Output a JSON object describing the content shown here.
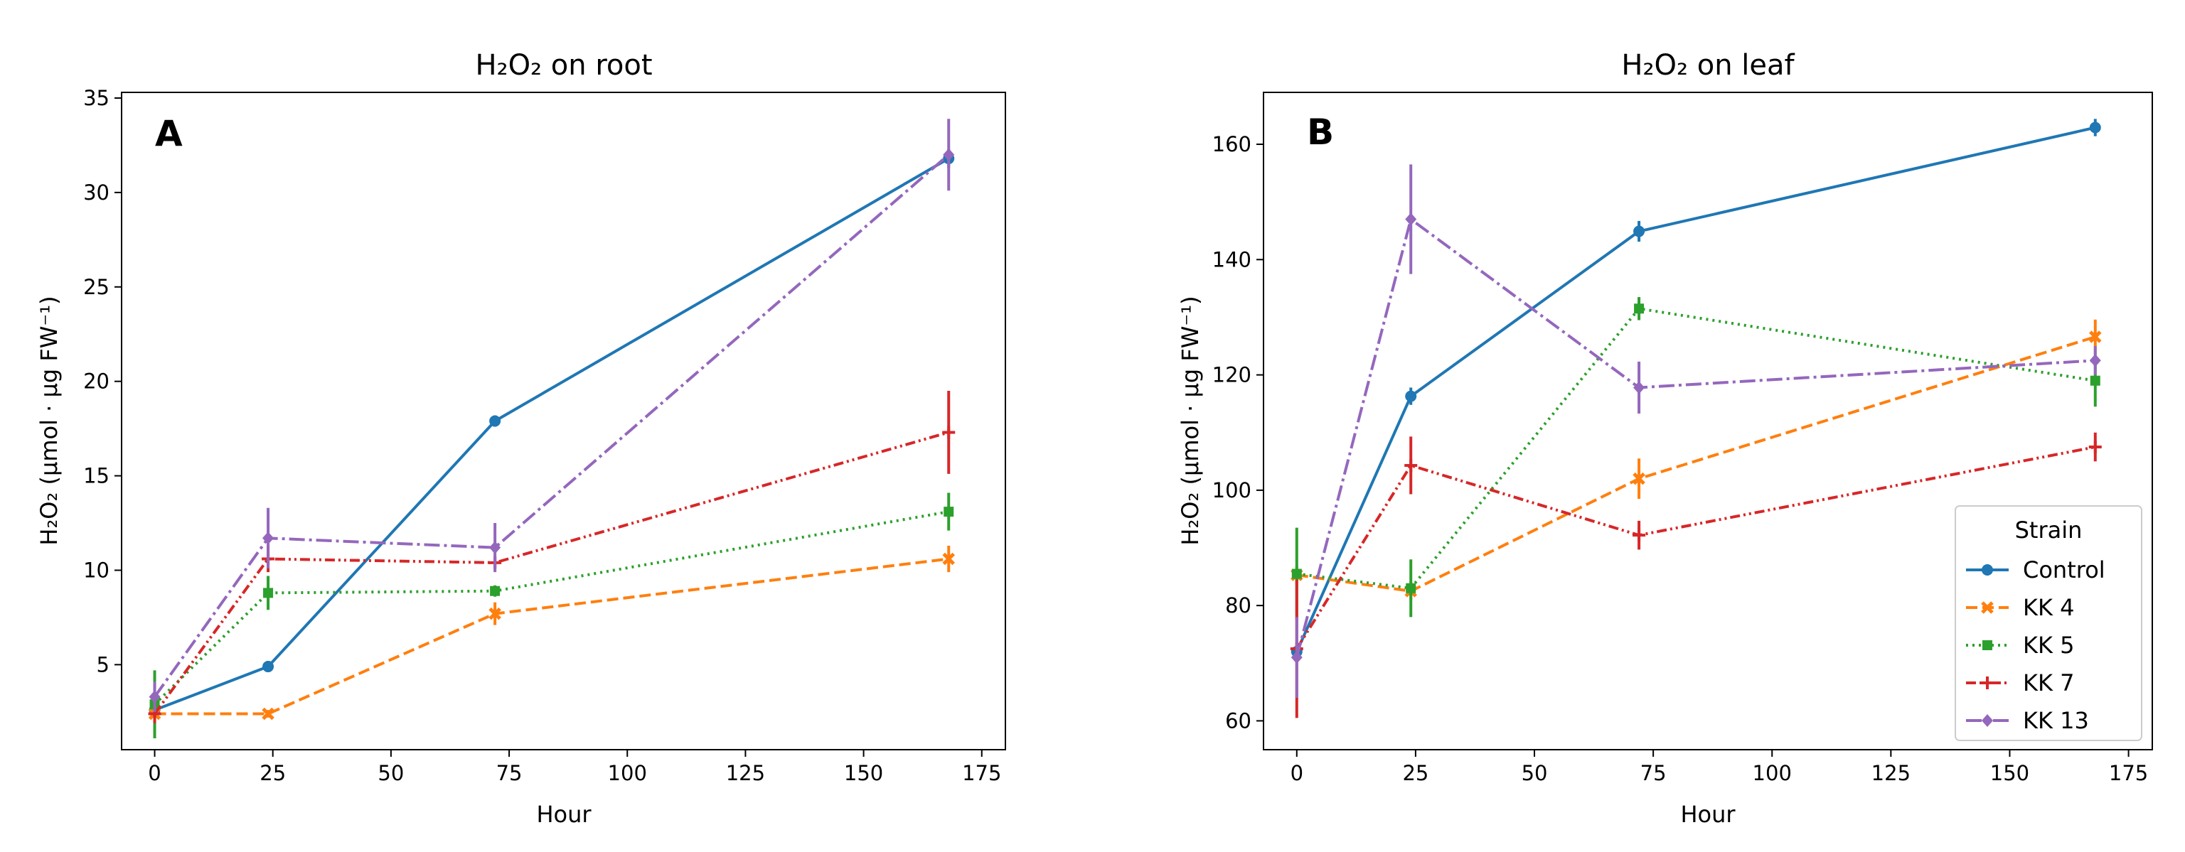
{
  "chart_data": [
    {
      "type": "line",
      "panel_letter": "A",
      "title": "H₂O₂ on root",
      "xlabel": "Hour",
      "ylabel": "H₂O₂ (µmol · µg FW⁻¹)",
      "xlim": [
        -7,
        180
      ],
      "ylim": [
        0.5,
        35.3
      ],
      "xticks": [
        0,
        25,
        50,
        75,
        100,
        125,
        150,
        175
      ],
      "xtick_labels": [
        "0",
        "25",
        "50",
        "75",
        "100",
        "125",
        "150",
        "175"
      ],
      "yticks": [
        5,
        10,
        15,
        20,
        25,
        30,
        35
      ],
      "ytick_labels": [
        "5",
        "10",
        "15",
        "20",
        "25",
        "30",
        "35"
      ],
      "x": [
        0,
        24,
        72,
        168
      ],
      "series": [
        {
          "name": "Control",
          "values": [
            2.6,
            4.9,
            17.9,
            31.8
          ],
          "err": [
            0.3,
            0.3,
            0.3,
            0.5
          ]
        },
        {
          "name": "KK 4",
          "values": [
            2.4,
            2.4,
            7.7,
            10.6
          ],
          "err": [
            0.2,
            0.2,
            0.6,
            0.7
          ]
        },
        {
          "name": "KK 5",
          "values": [
            2.9,
            8.8,
            8.9,
            13.1
          ],
          "err": [
            1.8,
            0.9,
            0.3,
            1.0
          ]
        },
        {
          "name": "KK 7",
          "values": [
            2.4,
            10.6,
            10.4,
            17.3
          ],
          "err": [
            0.5,
            0.7,
            0.3,
            2.2
          ]
        },
        {
          "name": "KK 13",
          "values": [
            3.3,
            11.7,
            11.2,
            32.0
          ],
          "err": [
            0.8,
            1.6,
            1.3,
            1.9
          ]
        }
      ]
    },
    {
      "type": "line",
      "panel_letter": "B",
      "title": "H₂O₂ on leaf",
      "xlabel": "Hour",
      "ylabel": "H₂O₂ (µmol · µg FW⁻¹)",
      "xlim": [
        -7,
        180
      ],
      "ylim": [
        55,
        169
      ],
      "xticks": [
        0,
        25,
        50,
        75,
        100,
        125,
        150,
        175
      ],
      "xtick_labels": [
        "0",
        "25",
        "50",
        "75",
        "100",
        "125",
        "150",
        "175"
      ],
      "yticks": [
        60,
        80,
        100,
        120,
        140,
        160
      ],
      "ytick_labels": [
        "60",
        "80",
        "100",
        "120",
        "140",
        "160"
      ],
      "x": [
        0,
        24,
        72,
        168
      ],
      "series": [
        {
          "name": "Control",
          "values": [
            72.0,
            116.3,
            144.9,
            162.9
          ],
          "err": [
            1.5,
            1.5,
            1.8,
            1.5
          ]
        },
        {
          "name": "KK 4",
          "values": [
            85.3,
            82.5,
            102.0,
            126.6
          ],
          "err": [
            1.5,
            1.5,
            3.5,
            3.0
          ]
        },
        {
          "name": "KK 5",
          "values": [
            85.5,
            83.0,
            131.5,
            119.0
          ],
          "err": [
            8.0,
            5.0,
            2.0,
            4.5
          ]
        },
        {
          "name": "KK 7",
          "values": [
            72.5,
            104.3,
            92.2,
            107.5
          ],
          "err": [
            12.0,
            5.0,
            2.5,
            2.5
          ]
        },
        {
          "name": "KK 13",
          "values": [
            71.0,
            147.0,
            117.8,
            122.5
          ],
          "err": [
            7.0,
            9.5,
            4.5,
            2.5
          ]
        }
      ]
    }
  ],
  "legend": {
    "title": "Strain",
    "location": "lower-right of panel B",
    "entries": [
      "Control",
      "KK 4",
      "KK 5",
      "KK 7",
      "KK 13"
    ]
  },
  "series_styles": [
    {
      "name": "Control",
      "color": "#1f77b4",
      "dash": "solid",
      "marker": "circle"
    },
    {
      "name": "KK 4",
      "color": "#ff7f0e",
      "dash": "dashed",
      "marker": "x"
    },
    {
      "name": "KK 5",
      "color": "#2ca02c",
      "dash": "dotted",
      "marker": "square"
    },
    {
      "name": "KK 7",
      "color": "#d62728",
      "dash": "dashdotdot",
      "marker": "plus"
    },
    {
      "name": "KK 13",
      "color": "#9467bd",
      "dash": "dashdot",
      "marker": "diamond"
    }
  ]
}
